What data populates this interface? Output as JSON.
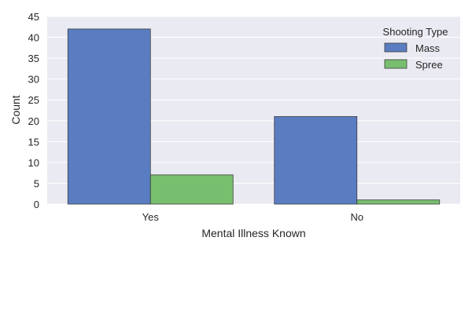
{
  "chart_data": {
    "type": "bar",
    "categories": [
      "Yes",
      "No"
    ],
    "series": [
      {
        "name": "Mass",
        "values": [
          42,
          21
        ],
        "color": "#5a7dc1"
      },
      {
        "name": "Spree",
        "values": [
          7,
          1
        ],
        "color": "#77bf6e"
      }
    ],
    "xlabel": "Mental Illness Known",
    "ylabel": "Count",
    "ylim": [
      0,
      45
    ],
    "yticks": [
      0,
      5,
      10,
      15,
      20,
      25,
      30,
      35,
      40,
      45
    ],
    "grid": true,
    "legend": {
      "title": "Shooting Type",
      "placement": "top-right"
    },
    "background": "#eaeaf2"
  }
}
